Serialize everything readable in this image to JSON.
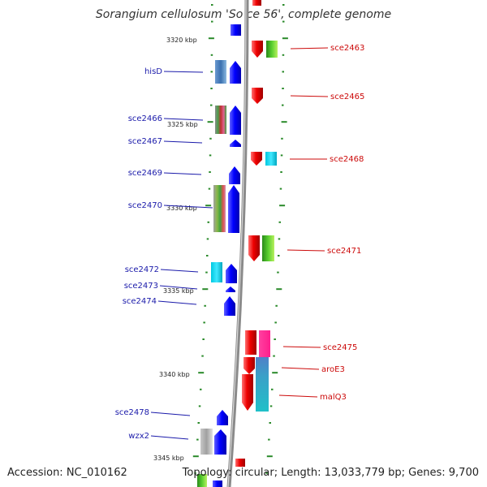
{
  "title": "Sorangium cellulosum 'So ce 56', complete genome",
  "footer": {
    "accession": "Accession: NC_010162",
    "summary": "Topology: circular; Length: 13,033,779 bp; Genes: 9,700"
  },
  "colors": {
    "backbone": "#8a8a8a",
    "forward_gene": "#0a0aff",
    "reverse_gene": "#ee0a0a",
    "ticks": "#2a8a2a",
    "left_labels": "#1a1aaa",
    "right_labels": "#cc0a0a"
  },
  "scale_labels": [
    "3320 kbp",
    "3325 kbp",
    "3330 kbp",
    "3335 kbp",
    "3340 kbp",
    "3345 kbp"
  ],
  "left_genes": [
    "hisD",
    "sce2466",
    "sce2467",
    "sce2469",
    "sce2470",
    "sce2472",
    "sce2473",
    "sce2474",
    "sce2478",
    "wzx2"
  ],
  "right_genes": [
    "sce2463",
    "sce2465",
    "sce2468",
    "sce2471",
    "sce2475",
    "aroE3",
    "malQ3"
  ]
}
